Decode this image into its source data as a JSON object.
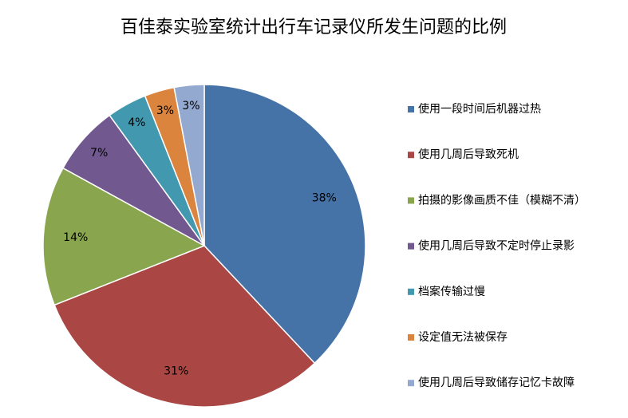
{
  "chart_data": {
    "type": "pie",
    "title": "百佳泰实验室统计出行车记录仪所发生问题的比例",
    "categories": [
      "使用一段时间后机器过热",
      "使用几周后导致死机",
      "拍摄的影像画质不佳（模糊不清）",
      "使用几周后导致不定时停止录影",
      "档案传输过慢",
      "设定值无法被保存",
      "使用几周后导致储存记忆卡故障"
    ],
    "values": [
      38,
      31,
      14,
      7,
      4,
      3,
      3
    ],
    "value_labels": [
      "38%",
      "31%",
      "14%",
      "7%",
      "4%",
      "3%",
      "3%"
    ],
    "colors": [
      "#4572a7",
      "#aa4643",
      "#89a54e",
      "#71588f",
      "#4198af",
      "#db843d",
      "#93a9cf"
    ],
    "legend": "right"
  }
}
